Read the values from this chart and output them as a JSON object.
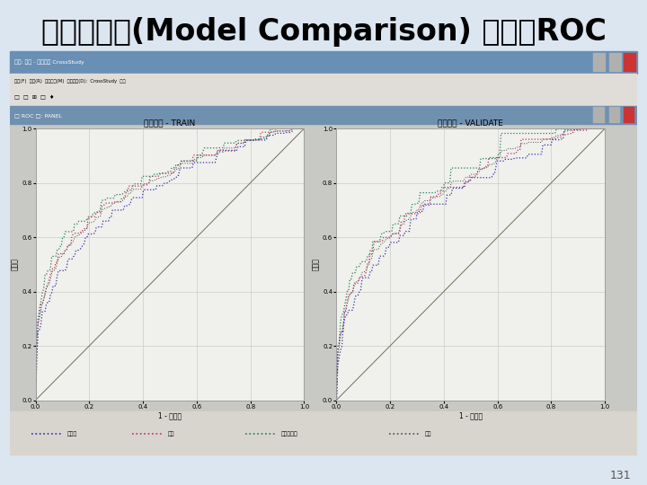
{
  "title": "跨模型比較(Model Comparison) 結果：ROC",
  "page_number": "131",
  "slide_bg": "#dce6f1",
  "window_outer_bg": "#d4d0c8",
  "window_titlebar_color": "#6a8fb5",
  "window_inner_titlebar": "#7090b0",
  "plot_bg": "#e8e8e4",
  "plot_inner_bg": "#f0f0ec",
  "left_plot_title": "資料角色 - TRAIN",
  "right_plot_title": "資料角色 - VALIDATE",
  "left_xlabel": "1 - 特異性",
  "right_xlabel": "1 - 特異性",
  "ylabel_left": "敏感性",
  "ylabel_right": "敏感性",
  "title_fontsize": 24,
  "legend_items": [
    "決策樹",
    "迴歸",
    "類神經網路",
    "平均"
  ],
  "legend_colors": [
    "#3030b0",
    "#c03060",
    "#208050",
    "#505050"
  ],
  "legend_styles": [
    "dotted",
    "dotted",
    "dotted",
    "dotted"
  ],
  "diag_color": "#808080",
  "train_curves": {
    "blue": {
      "auc": 0.82,
      "seed": 5
    },
    "red": {
      "auc": 0.87,
      "seed": 15
    },
    "green": {
      "auc": 0.89,
      "seed": 25
    }
  },
  "validate_curves": {
    "blue": {
      "auc": 0.78,
      "seed": 35
    },
    "red": {
      "auc": 0.82,
      "seed": 45
    },
    "green": {
      "auc": 0.84,
      "seed": 55
    }
  }
}
